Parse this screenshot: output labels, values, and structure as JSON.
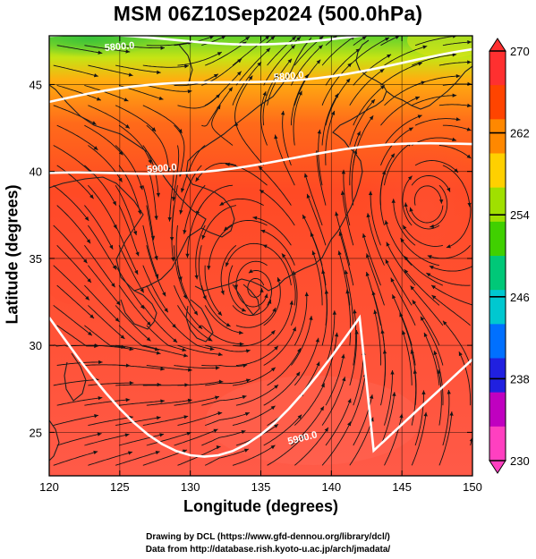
{
  "title": "MSM 06Z10Sep2024 (500.0hPa)",
  "x_axis": {
    "label": "Longitude (degrees)",
    "range": [
      120,
      150
    ],
    "ticks": [
      "120",
      "125",
      "130",
      "135",
      "140",
      "145",
      "150"
    ]
  },
  "y_axis": {
    "label": "Latitude  (degrees)",
    "range": [
      22.5,
      47.8
    ],
    "ticks": [
      "25",
      "30",
      "35",
      "40",
      "45"
    ]
  },
  "colorbar": {
    "min": 230,
    "max": 270,
    "tick_labels": [
      "270",
      "262",
      "254",
      "246",
      "238",
      "230"
    ],
    "colors": [
      "#ff40c0",
      "#c000c0",
      "#2020e0",
      "#0070ff",
      "#00c8d0",
      "#00c878",
      "#40d000",
      "#a0e000",
      "#ffd000",
      "#ff8800",
      "#ff4400",
      "#ff3030"
    ]
  },
  "contours": [
    {
      "label": "5800.0",
      "lat_at_120": 44.0,
      "lat_at_150": 46.7
    },
    {
      "label": "5800.0",
      "lat_at_120": 47.5,
      "lat_at_150": 47.8
    },
    {
      "label": "5900.0",
      "lat_at_120": 39.6,
      "lat_at_150": 41.6
    },
    {
      "label": "5900.0",
      "lat_at_120": 31.6,
      "lat_at_150": 29.4
    }
  ],
  "credits": {
    "line1": "Drawing by DCL (https://www.gfd-dennou.org/library/dcl/)",
    "line2": "Data from http://database.rish.kyoto-u.ac.jp/arch/jmadata/"
  }
}
